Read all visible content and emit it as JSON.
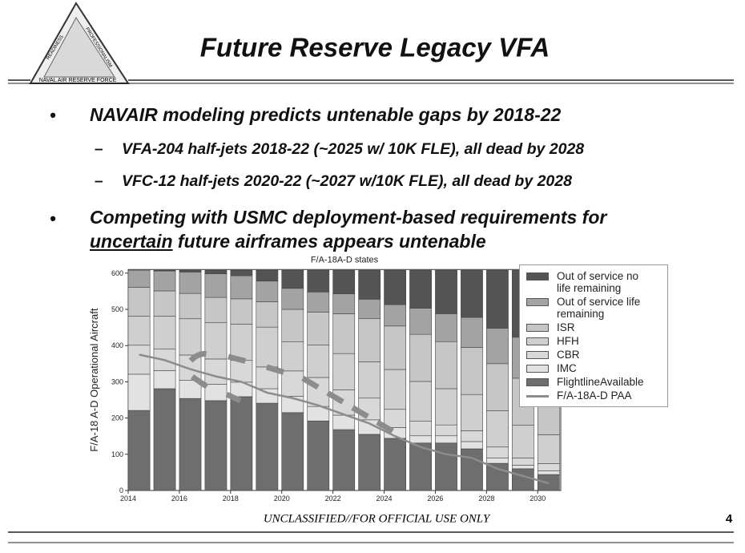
{
  "header": {
    "title": "Future Reserve Legacy VFA",
    "logo": {
      "top": "READINESS",
      "right": "PROFESSIONALISM",
      "bottom": "NAVAL AIR RESERVE FORCE"
    }
  },
  "bullets": [
    {
      "text": "NAVAIR modeling predicts untenable gaps by 2018-22",
      "subs": [
        "VFA-204 half-jets 2018-22 (~2025 w/ 10K FLE), all dead by 2028",
        "VFC-12 half-jets 2020-22 (~2027 w/10K FLE), all dead by 2028"
      ]
    },
    {
      "line1": "Competing with USMC deployment-based requirements for",
      "underlined": "uncertain",
      "rest": " future airframes appears untenable"
    }
  ],
  "footer": {
    "classification": "UNCLASSIFIED//FOR OFFICIAL USE ONLY",
    "page": "4"
  },
  "chart_data": {
    "type": "bar",
    "stacked": true,
    "title": "F/A-18A-D states",
    "y_label": "F/A-18 A-D Operational Aircraft",
    "x": [
      2014,
      2015,
      2016,
      2017,
      2018,
      2019,
      2020,
      2021,
      2022,
      2023,
      2024,
      2025,
      2026,
      2027,
      2028,
      2029,
      2030
    ],
    "xlim": [
      2014,
      2030.9
    ],
    "xticks": [
      2014,
      2016,
      2018,
      2020,
      2022,
      2024,
      2026,
      2028,
      2030
    ],
    "ylim": [
      0,
      610
    ],
    "yticks": [
      0,
      100,
      200,
      300,
      400,
      500,
      600
    ],
    "series": [
      {
        "name": "FlightlineAvailable",
        "color": "#6e6e6e",
        "values": [
          221,
          281,
          254,
          248,
          259,
          241,
          215,
          192,
          168,
          155,
          144,
          131,
          131,
          115,
          75,
          60,
          44
        ]
      },
      {
        "name": "IMC",
        "color": "#e2e2e2",
        "values": [
          100,
          50,
          50,
          45,
          40,
          40,
          45,
          40,
          40,
          40,
          30,
          20,
          20,
          20,
          15,
          10,
          10
        ]
      },
      {
        "name": "CBR",
        "color": "#d8d8d8",
        "values": [
          80,
          60,
          70,
          70,
          60,
          60,
          70,
          80,
          70,
          60,
          50,
          40,
          30,
          30,
          30,
          20,
          20
        ]
      },
      {
        "name": "HFH",
        "color": "#cfcfcf",
        "values": [
          80,
          90,
          100,
          100,
          100,
          110,
          80,
          90,
          100,
          100,
          110,
          110,
          100,
          100,
          100,
          90,
          80
        ]
      },
      {
        "name": "ISR",
        "color": "#c6c6c6",
        "values": [
          80,
          70,
          70,
          70,
          70,
          70,
          90,
          90,
          110,
          120,
          120,
          130,
          130,
          130,
          130,
          130,
          130
        ]
      },
      {
        "name": "Out of service life remaining",
        "color": "#a3a3a3",
        "values": [
          47,
          55,
          59,
          65,
          64,
          57,
          58,
          56,
          55,
          53,
          59,
          72,
          77,
          83,
          98,
          113,
          114
        ]
      },
      {
        "name": "Out of service no life remaining",
        "color": "#545454",
        "values": [
          0,
          2,
          5,
          10,
          15,
          30,
          50,
          60,
          65,
          80,
          95,
          105,
          120,
          130,
          160,
          185,
          210
        ]
      },
      {
        "name": "F/A-18A-D PAA",
        "type": "line",
        "color": "#8c8c8c",
        "values": [
          375,
          360,
          335,
          315,
          300,
          270,
          255,
          235,
          210,
          185,
          150,
          120,
          100,
          90,
          60,
          40,
          20
        ]
      }
    ]
  }
}
